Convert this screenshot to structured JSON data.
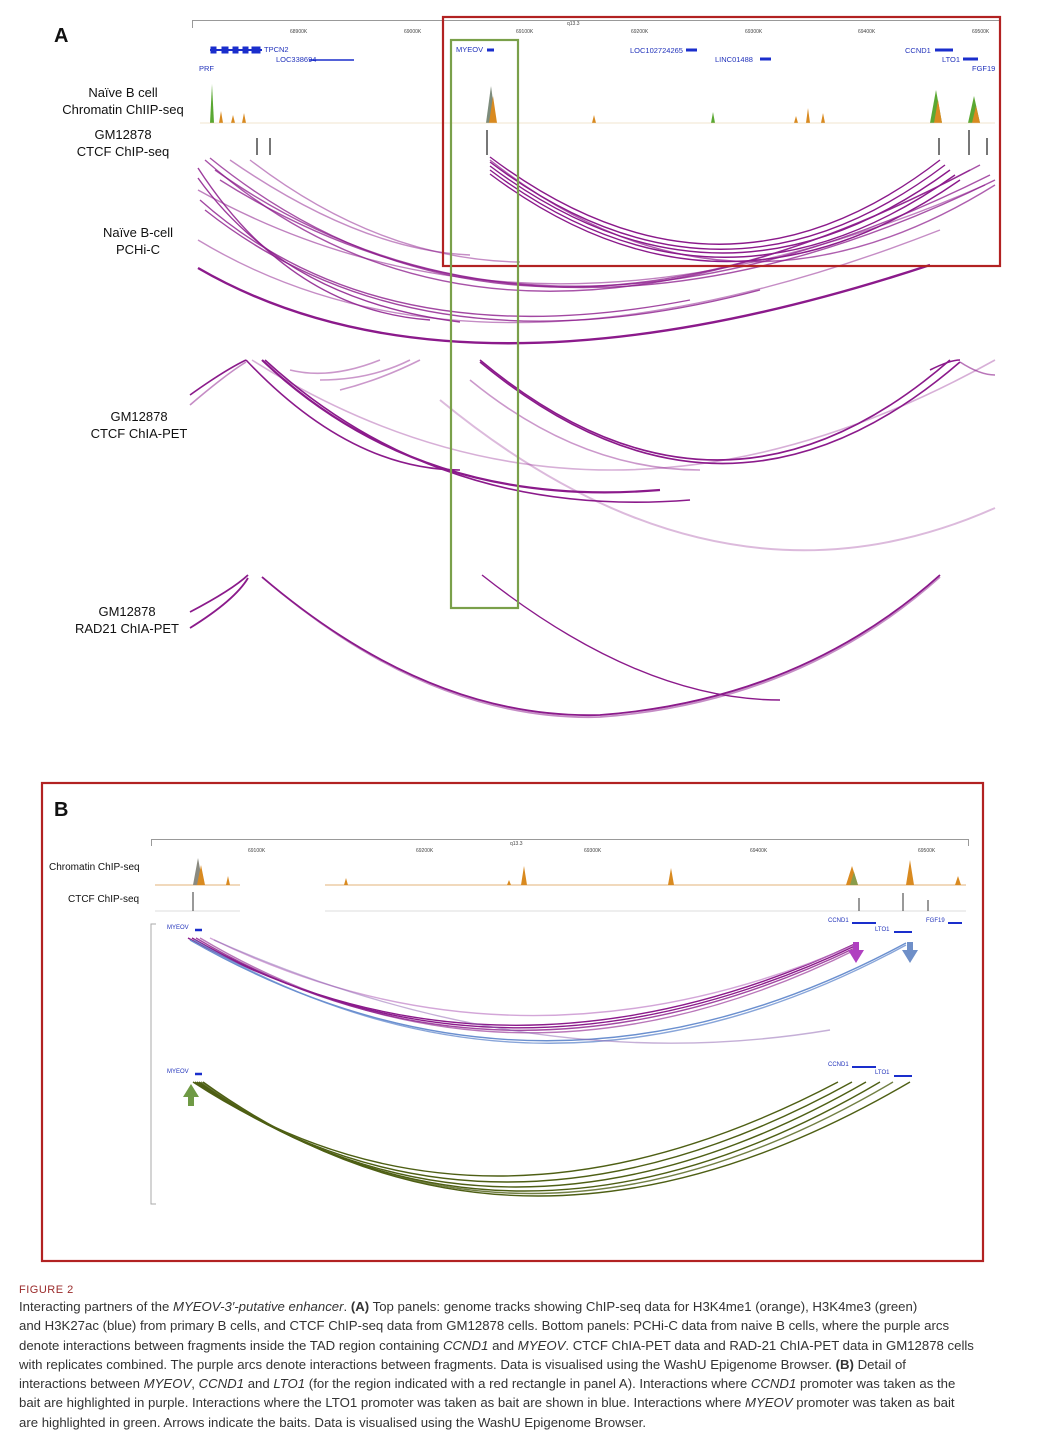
{
  "panelA": {
    "letter": "A",
    "tracks": [
      {
        "line1": "Naïve B cell",
        "line2": "Chromatin ChIIP-seq"
      },
      {
        "line1": "GM12878",
        "line2": "CTCF ChIP-seq"
      },
      {
        "line1": "Naïve B-cell",
        "line2": "PCHi-C"
      },
      {
        "line1": "GM12878",
        "line2": "CTCF ChIA-PET"
      },
      {
        "line1": "GM12878",
        "line2": "RAD21 ChIA-PET"
      }
    ],
    "ruler": {
      "band": "q13.3",
      "ticks": [
        "68900K",
        "69000K",
        "69100K",
        "69200K",
        "69300K",
        "69400K",
        "69500K"
      ]
    },
    "genes": [
      "TPCN2",
      "LOC338694",
      "PRF",
      "MYEOV",
      "LOC102724265",
      "LINC01488",
      "CCND1",
      "LTO1",
      "FGF19"
    ]
  },
  "panelB": {
    "letter": "B",
    "tracks": [
      "Chromatin ChIP-seq",
      "CTCF ChIP-seq"
    ],
    "ruler": {
      "band": "q13.3",
      "ticks": [
        "69100K",
        "69200K",
        "69300K",
        "69400K",
        "69500K"
      ]
    },
    "genes_top": [
      "MYEOV",
      "CCND1",
      "LTO1",
      "FGF19"
    ],
    "genes_bottom": [
      "MYEOV",
      "CCND1",
      "LTO1"
    ]
  },
  "colors": {
    "purple_arc": "#8b1a8b",
    "blue_arc": "#6a8fcf",
    "green_arc": "#4e5f14",
    "red_box": "#b22222",
    "green_box": "#7aa04a",
    "arrow_purple": "#b040c0",
    "arrow_blue": "#6f8fc8",
    "arrow_green": "#6f9a45"
  },
  "caption": {
    "title": "FIGURE 2",
    "l1a": "Interacting partners of the ",
    "l1b": "MYEOV-3′-putative enhancer",
    "l1c": ". ",
    "l1d": "(A)",
    "l1e": " Top panels: genome tracks showing ChIP-seq data for H3K4me1 (orange), H3K4me3 (green)",
    "l2": "and H3K27ac (blue) from primary B cells, and CTCF ChIP-seq data from GM12878 cells. Bottom panels: PCHi-C data from naive B cells, where the purple arcs",
    "l3a": "denote interactions between fragments inside the TAD region containing ",
    "l3b": "CCND1",
    "l3c": " and ",
    "l3d": "MYEOV",
    "l3e": ". CTCF ChIA-PET data and RAD-21 ChIA-PET data in GM12878 cells",
    "l4": "with replicates combined. The purple arcs denote interactions between fragments. Data is visualised using the WashU Epigenome Browser.",
    "l4b": "(B)",
    "l4c": " Detail of",
    "l5a": "interactions between ",
    "l5b": "MYEOV",
    "l5c": ", ",
    "l5d": "CCND1",
    "l5e": " and ",
    "l5f": "LTO1",
    "l5g": " (for the region indicated with a red rectangle in panel A). Interactions where ",
    "l5h": "CCND1",
    "l5i": " promoter was taken as the",
    "l6": "bait are highlighted in purple. Interactions where the LTO1 promoter was taken as bait are shown in blue. Interactions where ",
    "l6b": "MYEOV",
    "l6c": " promoter was taken as bait",
    "l7": "are highlighted in green. Arrows indicate the baits. Data is visualised using the WashU Epigenome Browser."
  }
}
